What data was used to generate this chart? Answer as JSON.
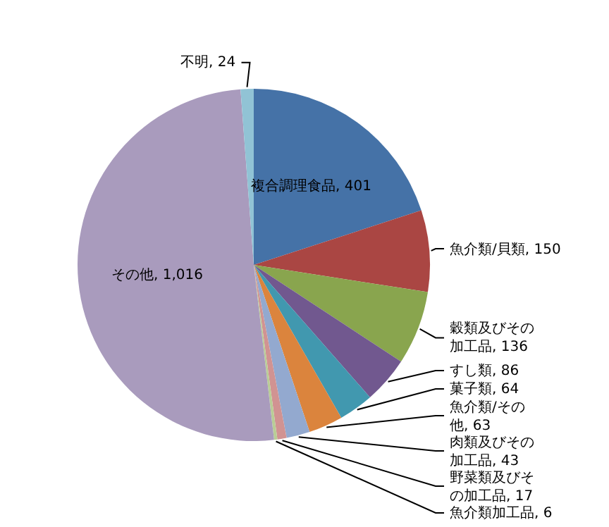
{
  "chart_data": {
    "type": "pie",
    "categories": [
      "複合調理食品",
      "魚介類/貝類",
      "穀類及びその加工品",
      "すし類",
      "菓子類",
      "魚介類/その他",
      "肉類及びその加工品",
      "野菜類及びその加工品",
      "魚介類加工品",
      "その他",
      "不明"
    ],
    "values": [
      401,
      150,
      136,
      86,
      64,
      63,
      43,
      17,
      6,
      1016,
      24
    ],
    "value_labels": [
      "401",
      "150",
      "136",
      "86",
      "64",
      "63",
      "43",
      "17",
      "6",
      "1,016",
      "24"
    ],
    "colors": [
      "#4572a7",
      "#aa4643",
      "#89a54e",
      "#71588f",
      "#4198af",
      "#db843d",
      "#93a9cf",
      "#d19392",
      "#b9cd96",
      "#a99bbd",
      "#91c3d5"
    ],
    "legend": false
  }
}
